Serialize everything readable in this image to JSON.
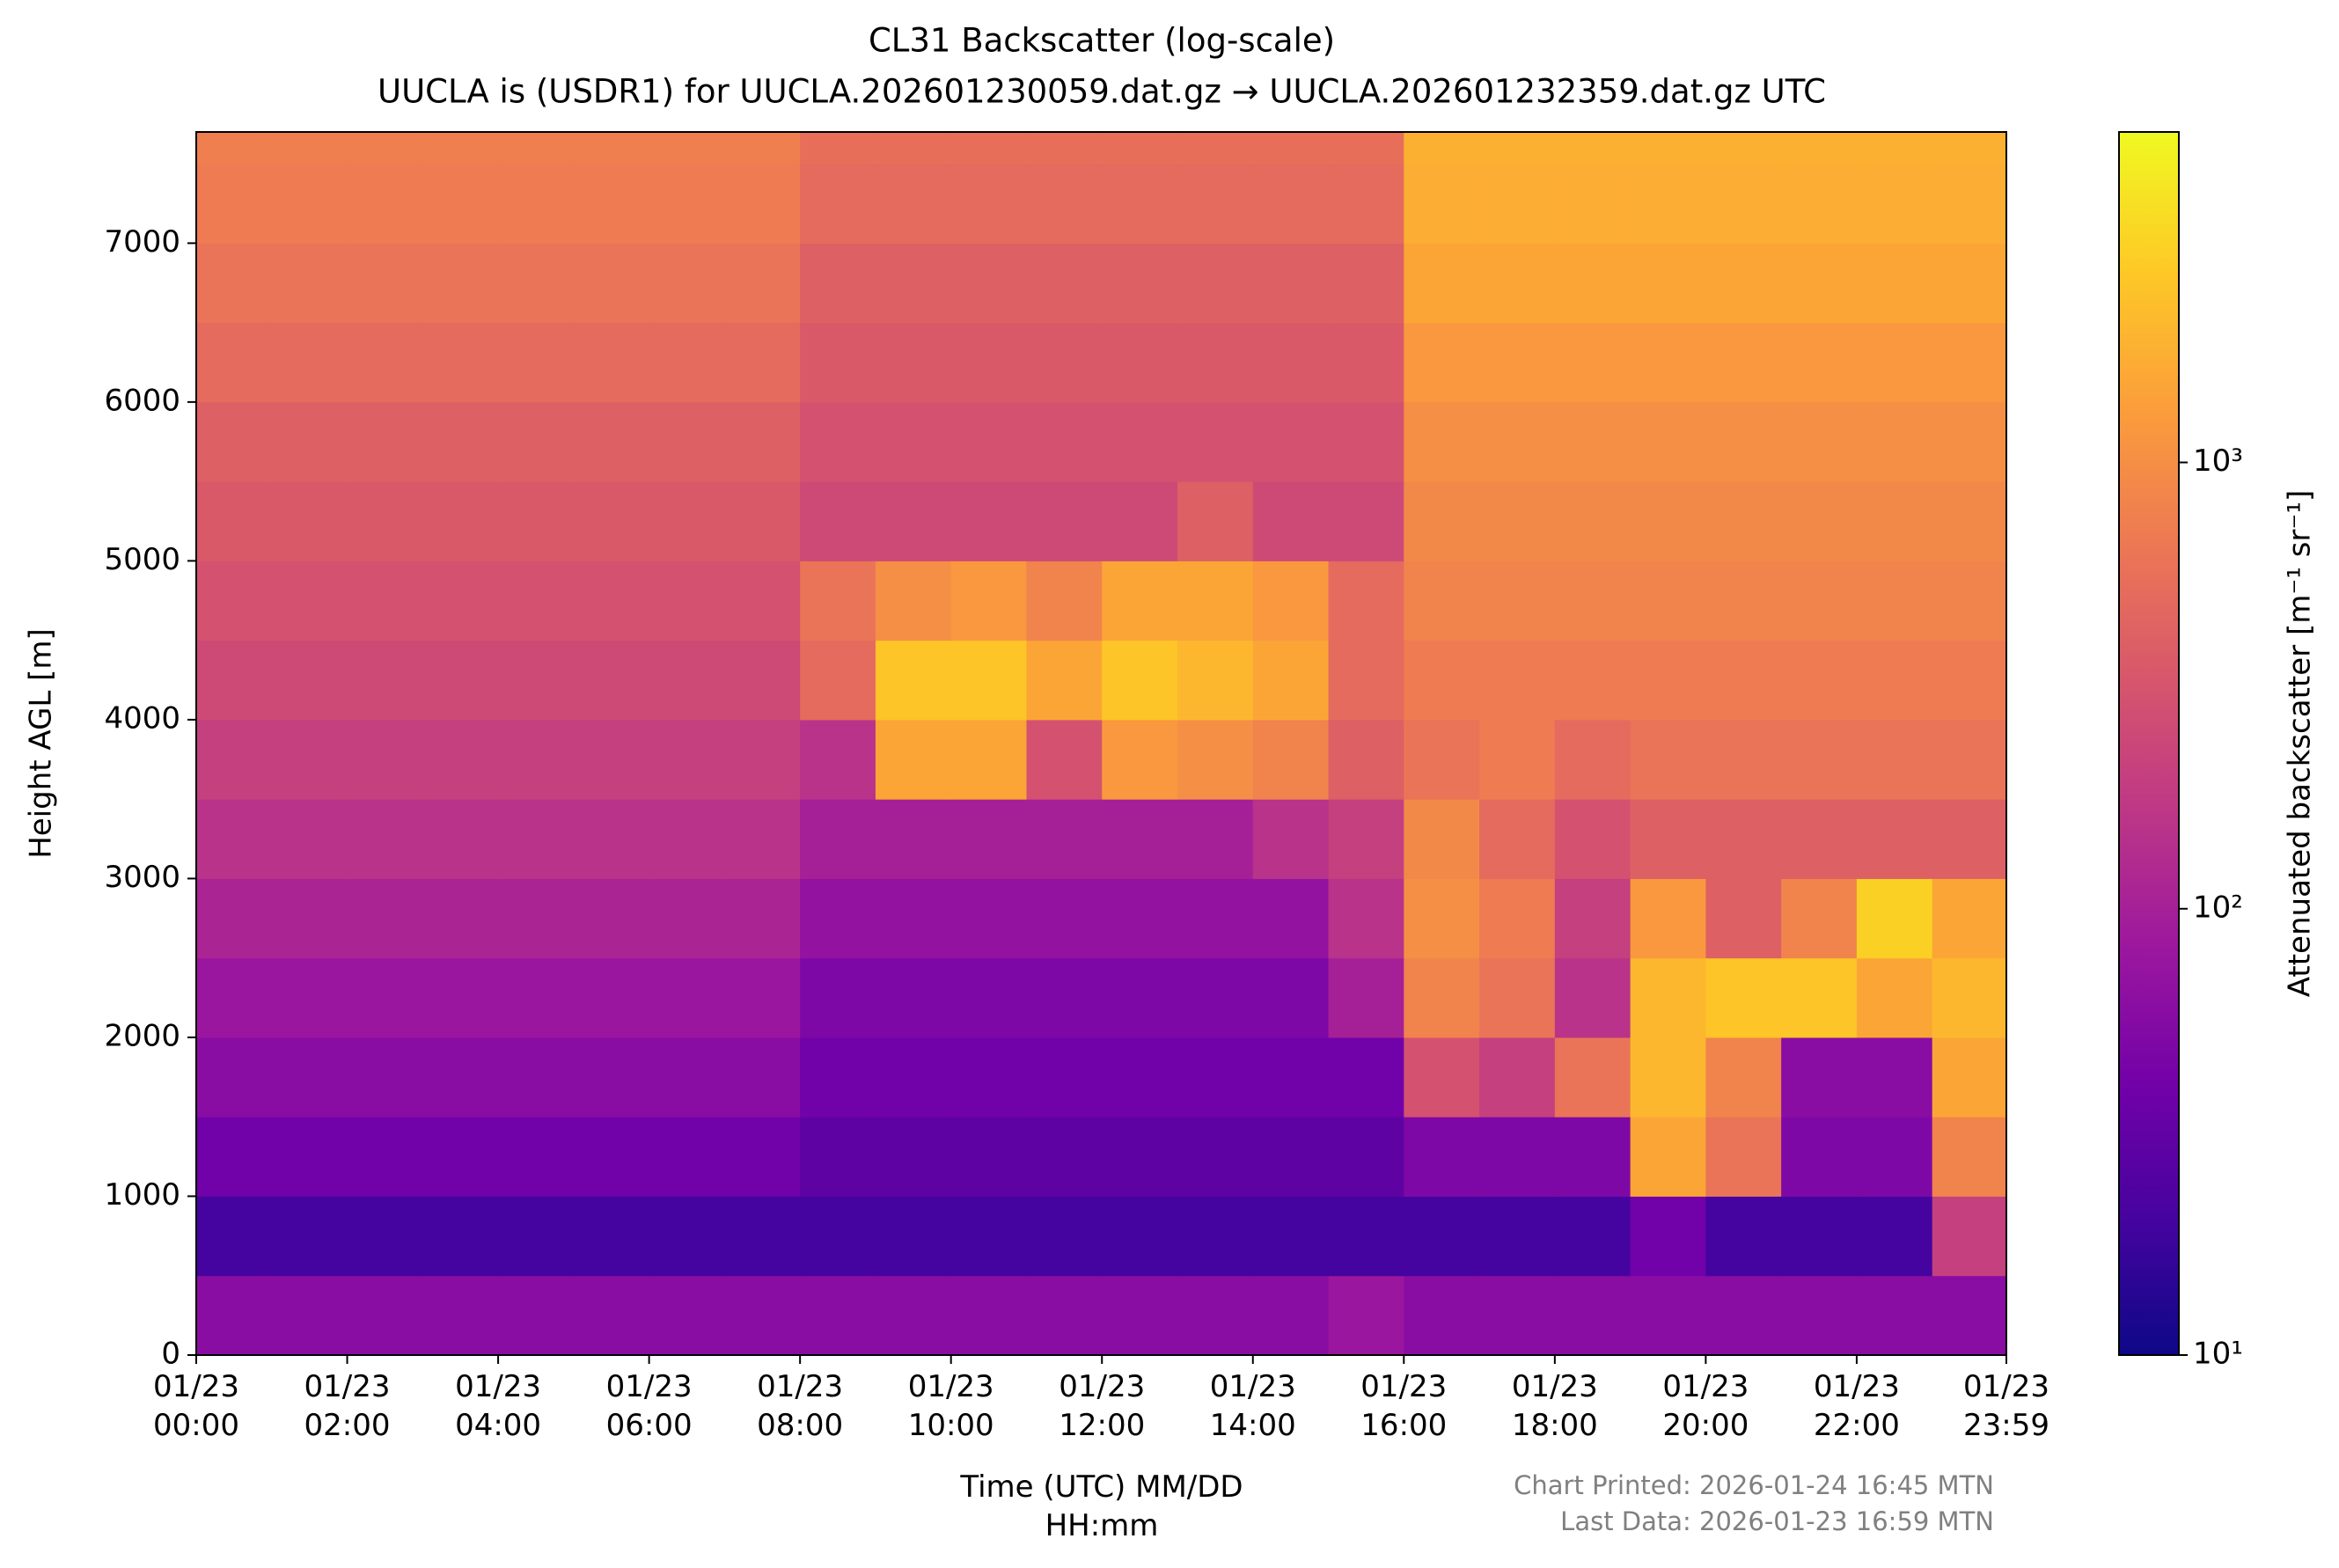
{
  "chart_data": {
    "type": "heatmap",
    "title": "CL31 Backscatter (log-scale)",
    "subtitle": "UUCLA is (USDR1) for UUCLA.202601230059.dat.gz → UUCLA.202601232359.dat.gz UTC",
    "x_label": "Time (UTC) MM/DD\nHH:mm",
    "y_label": "Height AGL [m]",
    "colorbar_label": "Attenuated backscatter [m⁻¹ sr⁻¹]",
    "footer": [
      "Chart Printed: 2026-01-24 16:45 MTN",
      "Last Data: 2026-01-23 16:59 MTN"
    ],
    "xlim": [
      0,
      23.983
    ],
    "xticks": [
      {
        "value": 0,
        "label": "01/23\n00:00"
      },
      {
        "value": 2,
        "label": "01/23\n02:00"
      },
      {
        "value": 4,
        "label": "01/23\n04:00"
      },
      {
        "value": 6,
        "label": "01/23\n06:00"
      },
      {
        "value": 8,
        "label": "01/23\n08:00"
      },
      {
        "value": 10,
        "label": "01/23\n10:00"
      },
      {
        "value": 12,
        "label": "01/23\n12:00"
      },
      {
        "value": 14,
        "label": "01/23\n14:00"
      },
      {
        "value": 16,
        "label": "01/23\n16:00"
      },
      {
        "value": 18,
        "label": "01/23\n18:00"
      },
      {
        "value": 20,
        "label": "01/23\n20:00"
      },
      {
        "value": 22,
        "label": "01/23\n22:00"
      },
      {
        "value": 23.983,
        "label": "01/23\n23:59"
      }
    ],
    "ylim": [
      0,
      7700
    ],
    "yticks": [
      0,
      1000,
      2000,
      3000,
      4000,
      5000,
      6000,
      7000
    ],
    "clim": [
      10,
      5500
    ],
    "log_scale": true,
    "cticks": [
      {
        "value": 10,
        "label": "10¹"
      },
      {
        "value": 100,
        "label": "10²"
      },
      {
        "value": 1000,
        "label": "10³"
      }
    ],
    "colormap_colors": [
      "#0d0887",
      "#46039f",
      "#7201a8",
      "#9c179e",
      "#bd3786",
      "#d8576b",
      "#ed7953",
      "#fb9f3a",
      "#fdca26",
      "#f0f921"
    ],
    "x_edges": [
      0,
      1,
      2,
      3,
      4,
      5,
      6,
      7,
      8,
      9,
      10,
      11,
      12,
      13,
      14,
      15,
      16,
      17,
      18,
      19,
      20,
      21,
      22,
      23,
      24
    ],
    "y_edges": [
      0,
      500,
      1000,
      1500,
      2000,
      2500,
      3000,
      3500,
      4000,
      4500,
      5000,
      5500,
      6000,
      6500,
      7000,
      7500,
      7700
    ],
    "values": [
      [
        60,
        60,
        60,
        60,
        60,
        60,
        60,
        60,
        60,
        60,
        60,
        60,
        60,
        60,
        60,
        80,
        60,
        60,
        60,
        60,
        60,
        60,
        60,
        60
      ],
      [
        20,
        20,
        20,
        20,
        20,
        20,
        20,
        20,
        20,
        20,
        20,
        20,
        20,
        20,
        20,
        20,
        20,
        20,
        20,
        40,
        20,
        20,
        20,
        200
      ],
      [
        40,
        40,
        40,
        40,
        40,
        40,
        40,
        40,
        30,
        30,
        30,
        30,
        30,
        30,
        30,
        30,
        50,
        50,
        50,
        1500,
        600,
        50,
        50,
        800
      ],
      [
        60,
        60,
        60,
        60,
        60,
        60,
        60,
        60,
        40,
        40,
        40,
        40,
        40,
        40,
        40,
        40,
        300,
        200,
        600,
        2000,
        800,
        60,
        60,
        1500
      ],
      [
        80,
        80,
        80,
        80,
        80,
        80,
        80,
        80,
        50,
        50,
        50,
        50,
        50,
        50,
        50,
        100,
        800,
        600,
        150,
        2000,
        2500,
        2500,
        1500,
        2000
      ],
      [
        110,
        110,
        110,
        110,
        110,
        110,
        110,
        110,
        70,
        70,
        70,
        70,
        70,
        70,
        70,
        150,
        1000,
        700,
        200,
        1200,
        400,
        800,
        3000,
        1500
      ],
      [
        150,
        150,
        150,
        150,
        150,
        150,
        150,
        150,
        100,
        100,
        100,
        100,
        100,
        100,
        150,
        200,
        900,
        500,
        300,
        400,
        400,
        400,
        400,
        400
      ],
      [
        200,
        200,
        200,
        200,
        200,
        200,
        200,
        200,
        150,
        1500,
        1500,
        300,
        1200,
        1000,
        800,
        400,
        600,
        700,
        500,
        600,
        600,
        600,
        600,
        600
      ],
      [
        250,
        250,
        250,
        250,
        250,
        250,
        250,
        250,
        500,
        2500,
        2500,
        1500,
        2500,
        2000,
        1500,
        500,
        700,
        700,
        700,
        700,
        700,
        700,
        700,
        700
      ],
      [
        300,
        300,
        300,
        300,
        300,
        300,
        300,
        300,
        600,
        1000,
        1200,
        800,
        1500,
        1500,
        1200,
        500,
        800,
        800,
        800,
        800,
        800,
        800,
        800,
        800
      ],
      [
        350,
        350,
        350,
        350,
        350,
        350,
        350,
        350,
        250,
        250,
        250,
        250,
        250,
        400,
        250,
        250,
        900,
        900,
        900,
        900,
        900,
        900,
        900,
        900
      ],
      [
        400,
        400,
        400,
        400,
        400,
        400,
        400,
        400,
        300,
        300,
        300,
        300,
        300,
        300,
        300,
        300,
        1000,
        1000,
        1000,
        1000,
        1000,
        1000,
        1000,
        1000
      ],
      [
        500,
        500,
        500,
        500,
        500,
        500,
        500,
        500,
        350,
        350,
        350,
        350,
        350,
        350,
        350,
        350,
        1200,
        1200,
        1200,
        1200,
        1200,
        1200,
        1200,
        1200
      ],
      [
        600,
        600,
        600,
        600,
        600,
        600,
        600,
        600,
        400,
        400,
        400,
        400,
        400,
        400,
        400,
        400,
        1500,
        1500,
        1500,
        1500,
        1500,
        1500,
        1500,
        1500
      ],
      [
        700,
        700,
        700,
        700,
        700,
        700,
        700,
        700,
        500,
        500,
        500,
        500,
        500,
        500,
        500,
        500,
        1700,
        1700,
        1700,
        1700,
        1700,
        1700,
        1700,
        1700
      ],
      [
        750,
        750,
        750,
        750,
        750,
        750,
        750,
        750,
        550,
        550,
        550,
        550,
        550,
        550,
        550,
        550,
        1800,
        1800,
        1800,
        1800,
        1800,
        1800,
        1800,
        1800
      ]
    ]
  }
}
